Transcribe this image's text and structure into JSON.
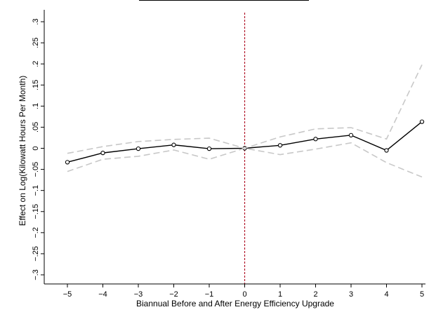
{
  "chart_data": {
    "type": "line",
    "title": "",
    "xlabel": "Biannual Before and After Energy Efficiency Upgrade",
    "ylabel": "Effect on Log(Kilowatt Hours Per Month)",
    "x": [
      -5,
      -4,
      -3,
      -2,
      -1,
      0,
      1,
      2,
      3,
      4,
      5
    ],
    "xlim": [
      -5,
      5
    ],
    "ylim": [
      -0.3,
      0.3
    ],
    "xticks": [
      "−5",
      "−4",
      "−3",
      "−2",
      "−1",
      "0",
      "1",
      "2",
      "3",
      "4",
      "5"
    ],
    "yticks": [
      "−.3",
      "−.25",
      "−.2",
      "−.15",
      "−.1",
      "−.05",
      "0",
      ".05",
      ".1",
      ".15",
      ".2",
      ".25",
      ".3"
    ],
    "ytick_values": [
      -0.3,
      -0.25,
      -0.2,
      -0.15,
      -0.1,
      -0.05,
      0,
      0.05,
      0.1,
      0.15,
      0.2,
      0.25,
      0.3
    ],
    "grid": false,
    "reference_line": {
      "x": 0,
      "color": "#b2182b",
      "style": "dashed"
    },
    "series": [
      {
        "role": "estimate",
        "values": [
          -0.033,
          -0.011,
          -0.001,
          0.008,
          -0.001,
          0.0,
          0.007,
          0.022,
          0.031,
          -0.005,
          0.063
        ],
        "color": "#000000",
        "markers": true
      },
      {
        "role": "upper-ci",
        "values": [
          -0.012,
          0.004,
          0.016,
          0.021,
          0.024,
          0.0,
          0.027,
          0.046,
          0.049,
          0.022,
          0.198
        ],
        "color": "#c8c8c8",
        "style": "dashed"
      },
      {
        "role": "lower-ci",
        "values": [
          -0.055,
          -0.026,
          -0.019,
          -0.004,
          -0.026,
          0.0,
          -0.015,
          -0.002,
          0.013,
          -0.034,
          -0.068
        ],
        "color": "#c8c8c8",
        "style": "dashed"
      }
    ]
  }
}
